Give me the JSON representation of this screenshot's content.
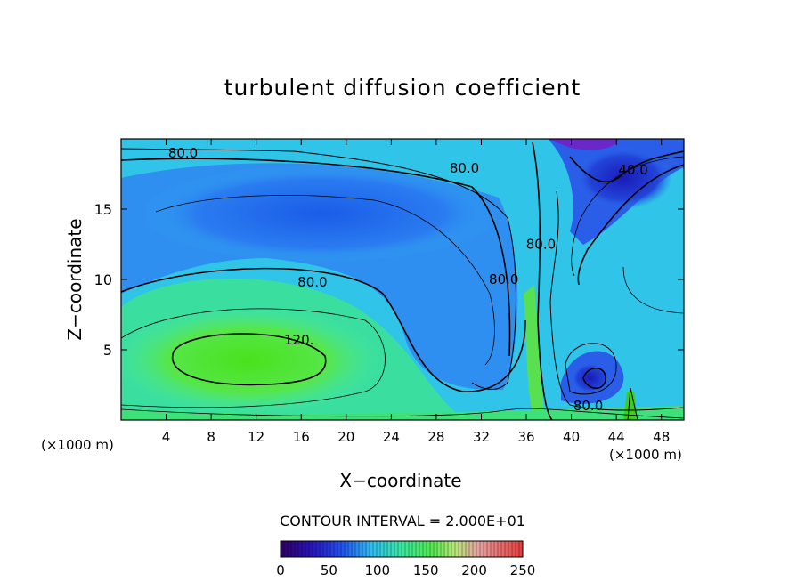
{
  "chart_data": {
    "type": "heatmap",
    "title": "turbulent diffusion coefficient",
    "xlabel": "X−coordinate",
    "ylabel": "Z−coordinate",
    "x_unit_label": "(×1000 m)",
    "x_ticks": [
      4,
      8,
      12,
      16,
      20,
      24,
      28,
      32,
      36,
      40,
      44,
      48
    ],
    "y_ticks": [
      5,
      10,
      15
    ],
    "xlim": [
      0,
      50
    ],
    "ylim": [
      0,
      20
    ],
    "contour_interval_label": "CONTOUR INTERVAL = 2.000E+01",
    "contour_labels": [
      {
        "text": "80.0",
        "x": 5.5,
        "y": 19.0
      },
      {
        "text": "80.0",
        "x": 30.5,
        "y": 17.9
      },
      {
        "text": "80.0",
        "x": 17.0,
        "y": 9.8
      },
      {
        "text": "120.",
        "x": 15.8,
        "y": 5.7
      },
      {
        "text": "80.0",
        "x": 34.0,
        "y": 10.0
      },
      {
        "text": "80.0",
        "x": 37.3,
        "y": 12.5
      },
      {
        "text": "40.0",
        "x": 45.5,
        "y": 17.8
      },
      {
        "text": "80.0",
        "x": 41.5,
        "y": 1.0
      }
    ],
    "colorbar": {
      "range": [
        0,
        250
      ],
      "ticks": [
        0,
        50,
        100,
        150,
        200,
        250
      ]
    },
    "colors": {
      "low": "#3a0a8c",
      "mid": "#28c0f0",
      "high_mid": "#44e040",
      "high": "#e03a3a"
    }
  }
}
